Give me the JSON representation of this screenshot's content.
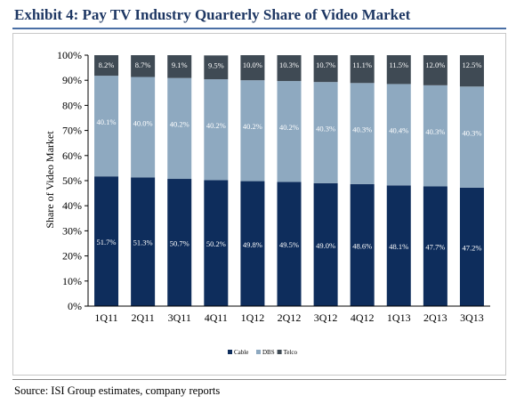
{
  "header": {
    "title": "Exhibit 4: Pay TV Industry Quarterly Share of Video Market"
  },
  "footer": {
    "source": "Source: ISI Group estimates, company reports"
  },
  "chart_data": {
    "type": "bar",
    "stacked": true,
    "title": "",
    "xlabel": "",
    "ylabel": "Share of Video Market",
    "ylim": [
      0,
      100
    ],
    "y_ticks": [
      "0%",
      "10%",
      "20%",
      "30%",
      "40%",
      "50%",
      "60%",
      "70%",
      "80%",
      "90%",
      "100%"
    ],
    "categories": [
      "1Q11",
      "2Q11",
      "3Q11",
      "4Q11",
      "1Q12",
      "2Q12",
      "3Q12",
      "4Q12",
      "1Q13",
      "2Q13",
      "3Q13"
    ],
    "series": [
      {
        "name": "Cable",
        "color": "#0e2d5c",
        "values": [
          51.7,
          51.3,
          50.7,
          50.2,
          49.8,
          49.5,
          49.0,
          48.6,
          48.1,
          47.7,
          47.2
        ],
        "labels": [
          "51.7%",
          "51.3%",
          "50.7%",
          "50.2%",
          "49.8%",
          "49.5%",
          "49.0%",
          "48.6%",
          "48.1%",
          "47.7%",
          "47.2%"
        ]
      },
      {
        "name": "DBS",
        "color": "#8ea9c0",
        "values": [
          40.1,
          40.0,
          40.2,
          40.2,
          40.2,
          40.2,
          40.3,
          40.3,
          40.4,
          40.3,
          40.3
        ],
        "labels": [
          "40.1%",
          "40.0%",
          "40.2%",
          "40.2%",
          "40.2%",
          "40.2%",
          "40.3%",
          "40.3%",
          "40.4%",
          "40.3%",
          "40.3%"
        ]
      },
      {
        "name": "Telco",
        "color": "#3f4a54",
        "values": [
          8.2,
          8.7,
          9.1,
          9.5,
          10.0,
          10.3,
          10.7,
          11.1,
          11.5,
          12.0,
          12.5
        ],
        "labels": [
          "8.2%",
          "8.7%",
          "9.1%",
          "9.5%",
          "10.0%",
          "10.3%",
          "10.7%",
          "11.1%",
          "11.5%",
          "12.0%",
          "12.5%"
        ]
      }
    ],
    "legend_position": "bottom",
    "grid": false
  }
}
